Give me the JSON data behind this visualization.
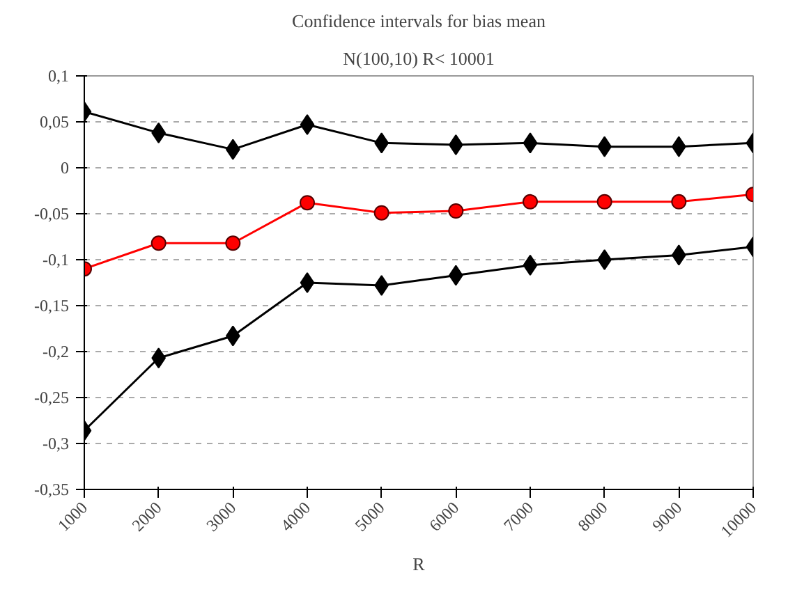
{
  "chart_data": {
    "type": "line",
    "title": "Confidence intervals for bias mean",
    "subtitle": "N(100,10) R< 10001",
    "xlabel": "R",
    "categories": [
      "1000",
      "2000",
      "3000",
      "4000",
      "5000",
      "6000",
      "7000",
      "8000",
      "9000",
      "10000"
    ],
    "series": [
      {
        "color": "#000000",
        "marker": "diamond",
        "values": [
          0.061,
          0.038,
          0.02,
          0.047,
          0.027,
          0.025,
          0.027,
          0.023,
          0.023,
          0.027
        ]
      },
      {
        "color": "#ff0000",
        "marker": "circle",
        "values": [
          -0.11,
          -0.082,
          -0.082,
          -0.038,
          -0.049,
          -0.047,
          -0.037,
          -0.037,
          -0.037,
          -0.029
        ]
      },
      {
        "color": "#000000",
        "marker": "diamond",
        "values": [
          -0.286,
          -0.207,
          -0.183,
          -0.125,
          -0.128,
          -0.117,
          -0.106,
          -0.1,
          -0.095,
          -0.086
        ]
      }
    ],
    "ylim": [
      -0.35,
      0.1
    ],
    "yticks": [
      {
        "value": -0.35,
        "label": "-0,35"
      },
      {
        "value": -0.3,
        "label": "-0,3"
      },
      {
        "value": -0.25,
        "label": "-0,25"
      },
      {
        "value": -0.2,
        "label": "-0,2"
      },
      {
        "value": -0.15,
        "label": "-0,15"
      },
      {
        "value": -0.1,
        "label": "-0,1"
      },
      {
        "value": -0.05,
        "label": "-0,05"
      },
      {
        "value": 0,
        "label": "0"
      },
      {
        "value": 0.05,
        "label": "0,05"
      },
      {
        "value": 0.1,
        "label": "0,1"
      }
    ],
    "grid": "y",
    "line_style": "solid"
  }
}
